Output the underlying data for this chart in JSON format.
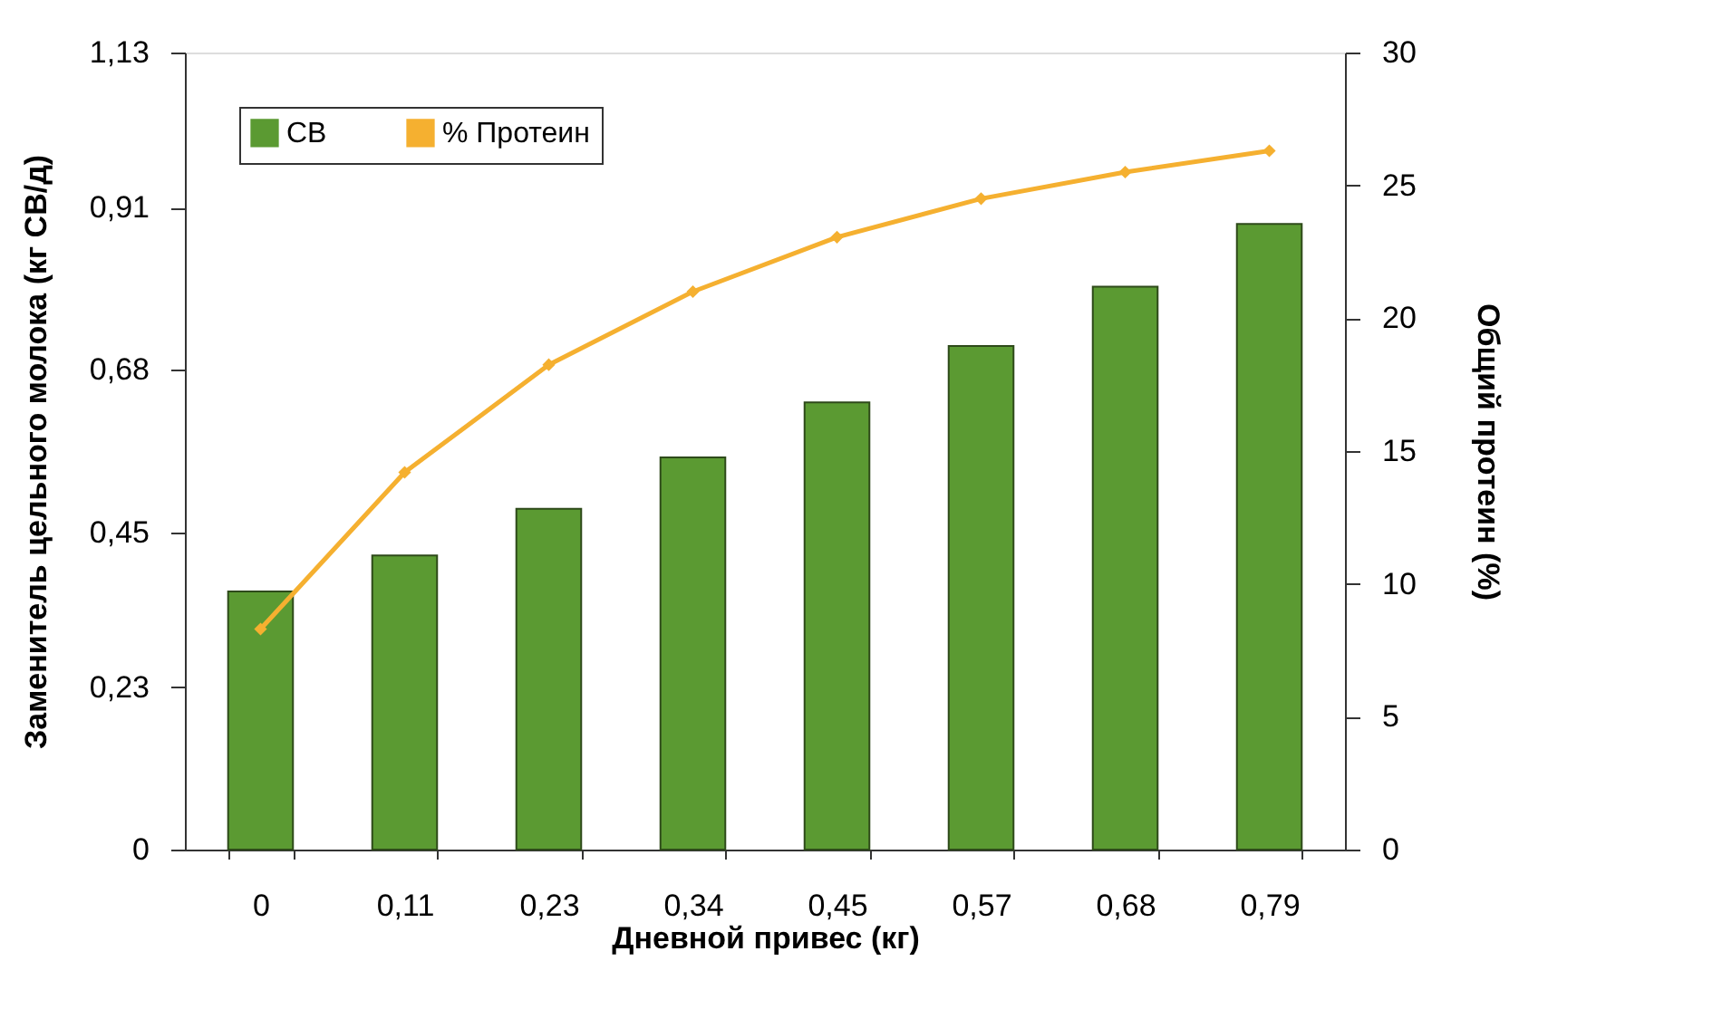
{
  "chart_data": {
    "type": "bar",
    "xlabel": "Дневной привес (кг)",
    "ylabel": "Заменитель цельного молока (кг СВ/д)",
    "y2label": "Общий протеин (%)",
    "categories": [
      "0",
      "0,11",
      "0,23",
      "0,34",
      "0,45",
      "0,57",
      "0,68",
      "0,79"
    ],
    "series": [
      {
        "name": "СВ",
        "color": "#5b9a32",
        "values": [
          0.366,
          0.417,
          0.483,
          0.556,
          0.634,
          0.714,
          0.798,
          0.887
        ]
      },
      {
        "name": "% Протеин",
        "color": "#f5b030",
        "type": "line",
        "axis": "y2",
        "marker": "diamond",
        "values": [
          8.3,
          14.2,
          18.25,
          21.0,
          23.05,
          24.5,
          25.5,
          26.3
        ]
      }
    ],
    "ylim": [
      0,
      1.13
    ],
    "yticks": [
      0,
      {
        "value": 0.23,
        "label": "0,23"
      },
      {
        "value": 0.45,
        "label": "0,45"
      },
      {
        "value": 0.68,
        "label": "0,68"
      },
      {
        "value": 0.91,
        "label": "0,91"
      },
      {
        "value": 1.13,
        "label": "1,13"
      }
    ],
    "y2lim": [
      0,
      30
    ],
    "y2ticks": [
      0,
      5,
      10,
      15,
      20,
      25,
      30
    ],
    "grid": false,
    "legend": "top left"
  }
}
